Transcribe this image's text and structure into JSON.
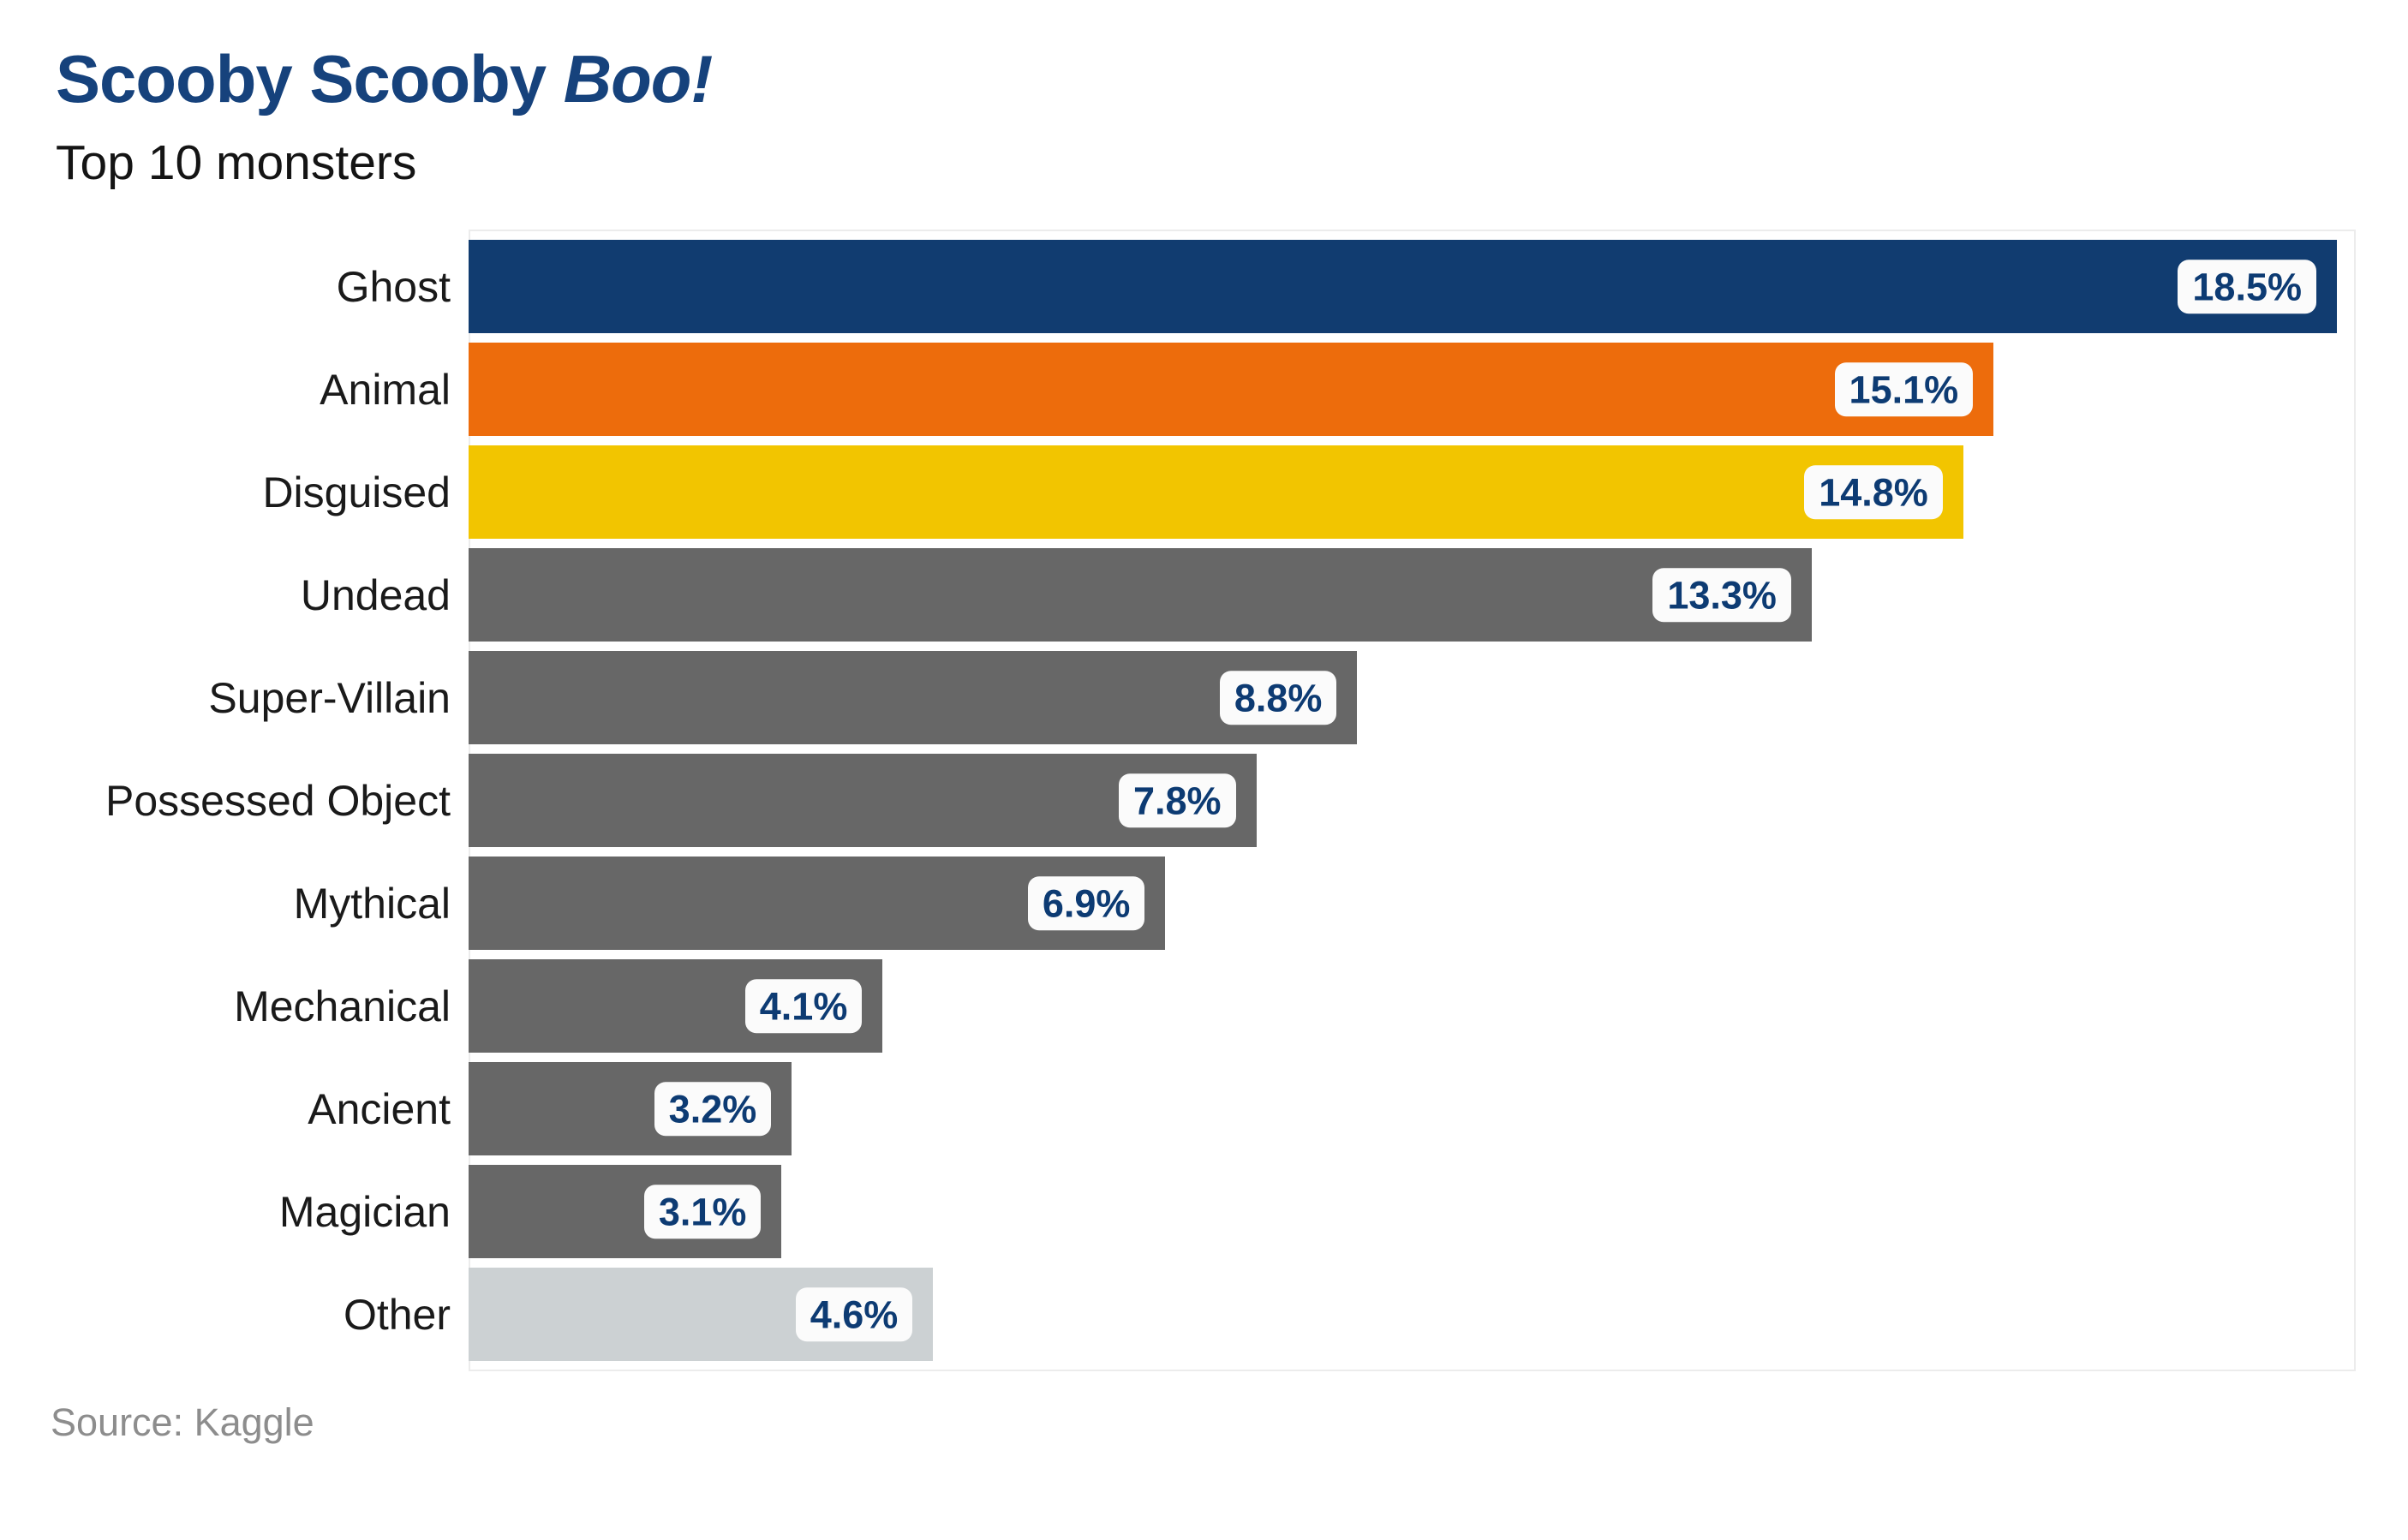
{
  "header": {
    "title_main": "Scooby Scooby",
    "title_accent": "Boo!",
    "subtitle": "Top 10 monsters"
  },
  "footer": {
    "source": "Source: Kaggle"
  },
  "colors": {
    "title_navy": "#16427c",
    "bar_navy": "#113c70",
    "bar_orange": "#ed6c0c",
    "bar_yellow": "#f2c500",
    "bar_gray": "#676767",
    "bar_light_gray": "#ccd1d3",
    "chip_background": "#fbfbfb",
    "chip_text": "#0d3b73",
    "panel_border": "#ececec",
    "source_text": "#8d8d8d"
  },
  "chart_data": {
    "type": "bar",
    "orientation": "horizontal",
    "title": "Scooby Scooby Boo!",
    "subtitle": "Top 10 monsters",
    "source": "Source: Kaggle",
    "categories": [
      "Ghost",
      "Animal",
      "Disguised",
      "Undead",
      "Super-Villain",
      "Possessed Object",
      "Mythical",
      "Mechanical",
      "Ancient",
      "Magician",
      "Other"
    ],
    "values": [
      18.5,
      15.1,
      14.8,
      13.3,
      8.8,
      7.8,
      6.9,
      4.1,
      3.2,
      3.1,
      4.6
    ],
    "value_labels": [
      "18.5%",
      "15.1%",
      "14.8%",
      "13.3%",
      "8.8%",
      "7.8%",
      "6.9%",
      "4.1%",
      "3.2%",
      "3.1%",
      "4.6%"
    ],
    "bar_colors": [
      "#113c70",
      "#ed6c0c",
      "#f2c500",
      "#676767",
      "#676767",
      "#676767",
      "#676767",
      "#676767",
      "#676767",
      "#676767",
      "#ccd1d3"
    ],
    "xlabel": "",
    "ylabel": "",
    "xlim": [
      0,
      18.7
    ],
    "grid": false,
    "legend": false,
    "value_label_style": "white rounded chip inside right end of each bar"
  }
}
